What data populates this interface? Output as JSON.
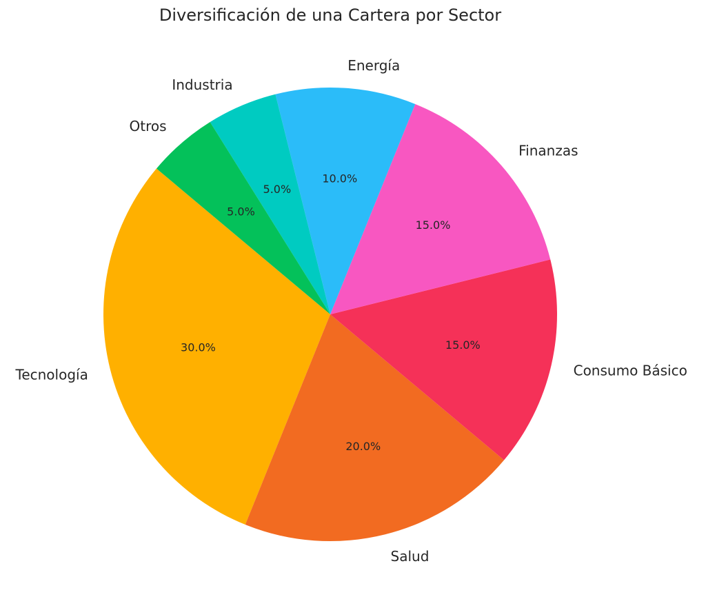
{
  "chart_data": {
    "type": "pie",
    "title": "Diversificación de una Cartera por Sector",
    "categories": [
      "Tecnología",
      "Salud",
      "Consumo Básico",
      "Finanzas",
      "Energía",
      "Industria",
      "Otros"
    ],
    "values": [
      30,
      20,
      15,
      15,
      10,
      5,
      5
    ],
    "labels_pct": [
      "30.0%",
      "20.0%",
      "15.0%",
      "15.0%",
      "10.0%",
      "5.0%",
      "5.0%"
    ],
    "colors": [
      "#FFB000",
      "#F26B21",
      "#F53158",
      "#F857C1",
      "#2BBCF9",
      "#00CBC1",
      "#04C15A"
    ],
    "startangle": 140,
    "direction": "counterclockwise",
    "legend": null
  }
}
